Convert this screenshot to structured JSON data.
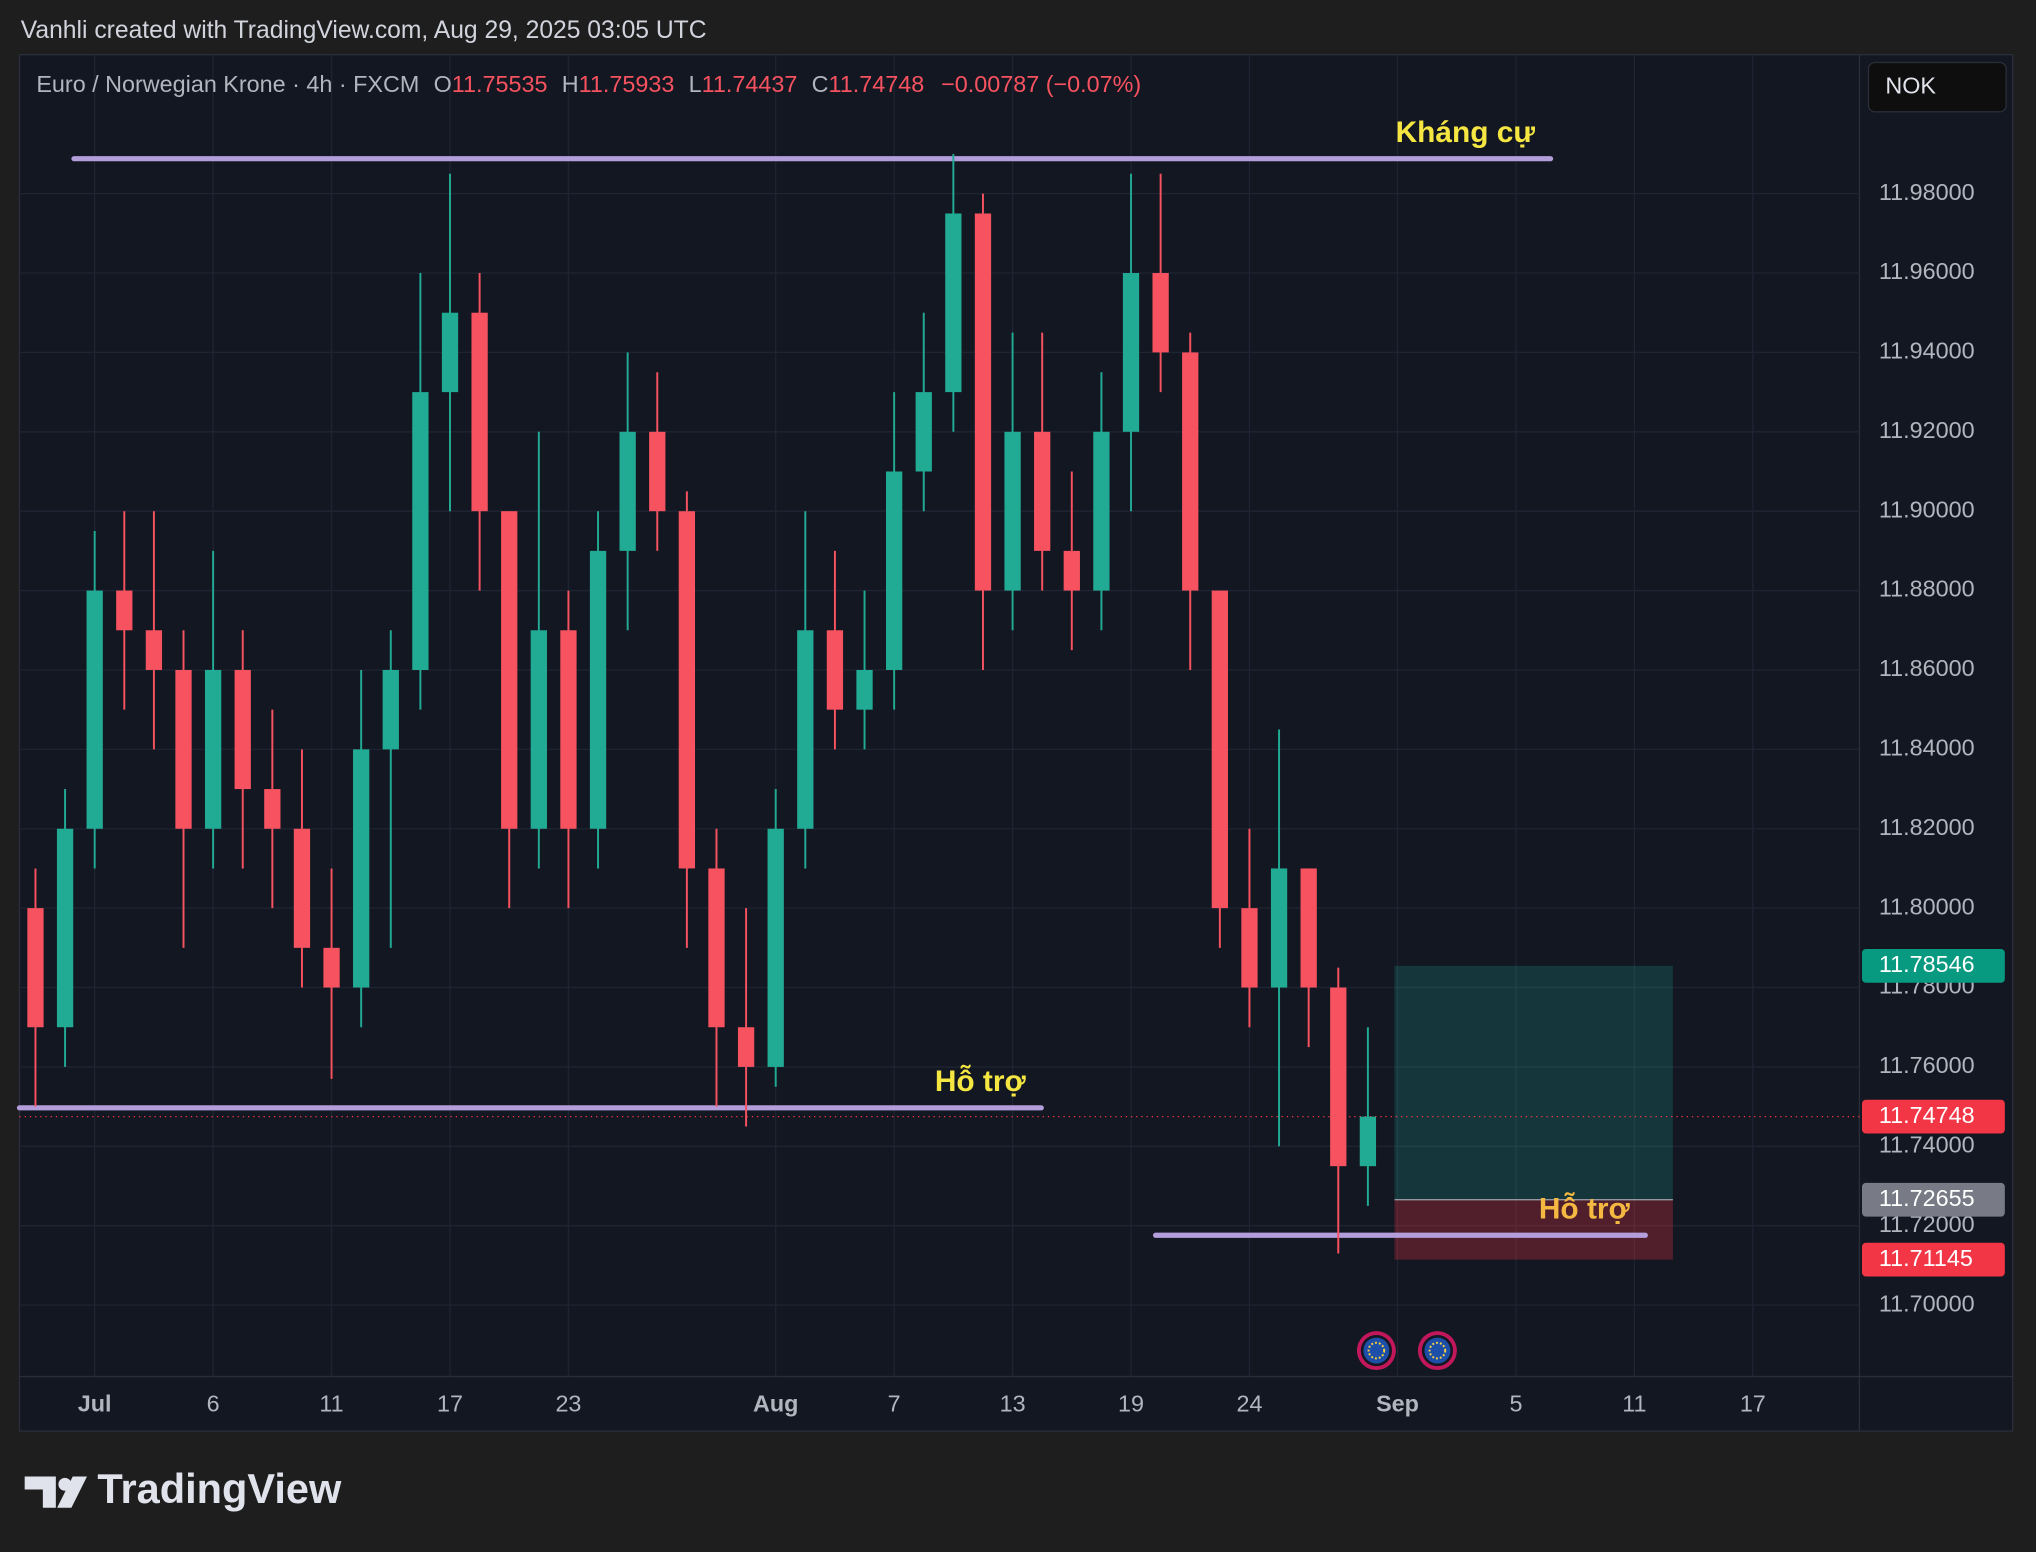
{
  "header": {
    "credit": "Vanhli created with TradingView.com, Aug 29, 2025 03:05 UTC"
  },
  "chart_data": {
    "type": "candlestick",
    "title": "Euro / Norwegian Krone · 4h · FXCM",
    "ohlc_legend": {
      "labels": [
        "O",
        "H",
        "L",
        "C"
      ],
      "values": [
        11.75535,
        11.75933,
        11.74437,
        11.74748
      ],
      "change": "−0.00787 (−0.07%)"
    },
    "currency": "NOK",
    "up_color": "#22ab94",
    "down_color": "#f7525f",
    "x": [
      -2,
      -1,
      0,
      1,
      2,
      3,
      4,
      5,
      6,
      7,
      8,
      9,
      10,
      11,
      12,
      13,
      14,
      15,
      16,
      17,
      18,
      19,
      20,
      21,
      22,
      23,
      24,
      25,
      26,
      27,
      28,
      29,
      30,
      31,
      32,
      33,
      34,
      35,
      36,
      37,
      38,
      39,
      40,
      41,
      42,
      43
    ],
    "open": [
      11.8,
      11.77,
      11.82,
      11.88,
      11.87,
      11.86,
      11.82,
      11.86,
      11.83,
      11.82,
      11.79,
      11.78,
      11.84,
      11.86,
      11.93,
      11.95,
      11.9,
      11.82,
      11.87,
      11.82,
      11.89,
      11.92,
      11.9,
      11.81,
      11.77,
      11.76,
      11.82,
      11.87,
      11.85,
      11.86,
      11.91,
      11.93,
      11.975,
      11.88,
      11.92,
      11.89,
      11.88,
      11.92,
      11.96,
      11.94,
      11.88,
      11.8,
      11.78,
      11.81,
      11.78,
      11.735
    ],
    "high": [
      11.81,
      11.83,
      11.895,
      11.9,
      11.9,
      11.87,
      11.89,
      11.87,
      11.85,
      11.84,
      11.81,
      11.86,
      11.87,
      11.96,
      11.985,
      11.96,
      11.9,
      11.92,
      11.88,
      11.9,
      11.94,
      11.935,
      11.905,
      11.82,
      11.8,
      11.83,
      11.9,
      11.89,
      11.88,
      11.93,
      11.95,
      11.99,
      11.98,
      11.945,
      11.945,
      11.91,
      11.935,
      11.985,
      11.985,
      11.945,
      11.88,
      11.82,
      11.845,
      11.81,
      11.785,
      11.77
    ],
    "low": [
      11.75,
      11.76,
      11.81,
      11.85,
      11.84,
      11.79,
      11.81,
      11.81,
      11.8,
      11.78,
      11.757,
      11.77,
      11.79,
      11.85,
      11.9,
      11.88,
      11.8,
      11.81,
      11.8,
      11.81,
      11.87,
      11.89,
      11.79,
      11.75,
      11.745,
      11.755,
      11.81,
      11.84,
      11.84,
      11.85,
      11.9,
      11.92,
      11.86,
      11.87,
      11.88,
      11.865,
      11.87,
      11.9,
      11.93,
      11.86,
      11.79,
      11.77,
      11.74,
      11.765,
      11.713,
      11.725
    ],
    "close": [
      11.77,
      11.82,
      11.88,
      11.87,
      11.86,
      11.82,
      11.86,
      11.83,
      11.82,
      11.79,
      11.78,
      11.84,
      11.86,
      11.93,
      11.95,
      11.9,
      11.82,
      11.87,
      11.82,
      11.89,
      11.92,
      11.9,
      11.81,
      11.77,
      11.76,
      11.82,
      11.87,
      11.85,
      11.86,
      11.91,
      11.93,
      11.975,
      11.88,
      11.92,
      11.89,
      11.88,
      11.92,
      11.96,
      11.94,
      11.88,
      11.8,
      11.78,
      11.81,
      11.78,
      11.735,
      11.74748
    ],
    "xlim": [
      -2.54,
      59.6
    ],
    "xticks": [
      {
        "value": 0,
        "label": "Jul"
      },
      {
        "value": 4,
        "label": "6"
      },
      {
        "value": 8,
        "label": "11"
      },
      {
        "value": 12,
        "label": "17"
      },
      {
        "value": 16,
        "label": "23"
      },
      {
        "value": 23,
        "label": "Aug"
      },
      {
        "value": 27,
        "label": "7"
      },
      {
        "value": 31,
        "label": "13"
      },
      {
        "value": 35,
        "label": "19"
      },
      {
        "value": 39,
        "label": "24"
      },
      {
        "value": 44,
        "label": "Sep"
      },
      {
        "value": 48,
        "label": "5"
      },
      {
        "value": 52,
        "label": "11"
      },
      {
        "value": 56,
        "label": "17"
      }
    ],
    "ylim": [
      11.682,
      12.015
    ],
    "yticks": [
      {
        "value": 11.7,
        "label": "11.70000"
      },
      {
        "value": 11.72,
        "label": "11.72000"
      },
      {
        "value": 11.74,
        "label": "11.74000"
      },
      {
        "value": 11.76,
        "label": "11.76000"
      },
      {
        "value": 11.78,
        "label": "11.78000"
      },
      {
        "value": 11.8,
        "label": "11.80000"
      },
      {
        "value": 11.82,
        "label": "11.82000"
      },
      {
        "value": 11.84,
        "label": "11.84000"
      },
      {
        "value": 11.86,
        "label": "11.86000"
      },
      {
        "value": 11.88,
        "label": "11.88000"
      },
      {
        "value": 11.9,
        "label": "11.90000"
      },
      {
        "value": 11.92,
        "label": "11.92000"
      },
      {
        "value": 11.94,
        "label": "11.94000"
      },
      {
        "value": 11.96,
        "label": "11.96000"
      },
      {
        "value": 11.98,
        "label": "11.98000"
      }
    ],
    "grid": true,
    "annotations": [
      {
        "text": "Kháng cự",
        "price": 11.9888,
        "x_start": -0.7,
        "x_end": 49.17,
        "color": "#f5e642"
      },
      {
        "text": "Hỗ trợ",
        "price": 11.7497,
        "x_start": -2.54,
        "x_end": 31.97,
        "color": "#f5e642"
      },
      {
        "text": "Hỗ trợ",
        "price": 11.7176,
        "x_start": 35.83,
        "x_end": 52.37,
        "color": "#f5b942"
      }
    ],
    "position": {
      "x_start": 43.9,
      "x_end": 53.3,
      "target": 11.78546,
      "entry": 11.72655,
      "stop": 11.71145
    },
    "last_price": 11.74748
  },
  "footer": {
    "brand": "TradingView"
  }
}
